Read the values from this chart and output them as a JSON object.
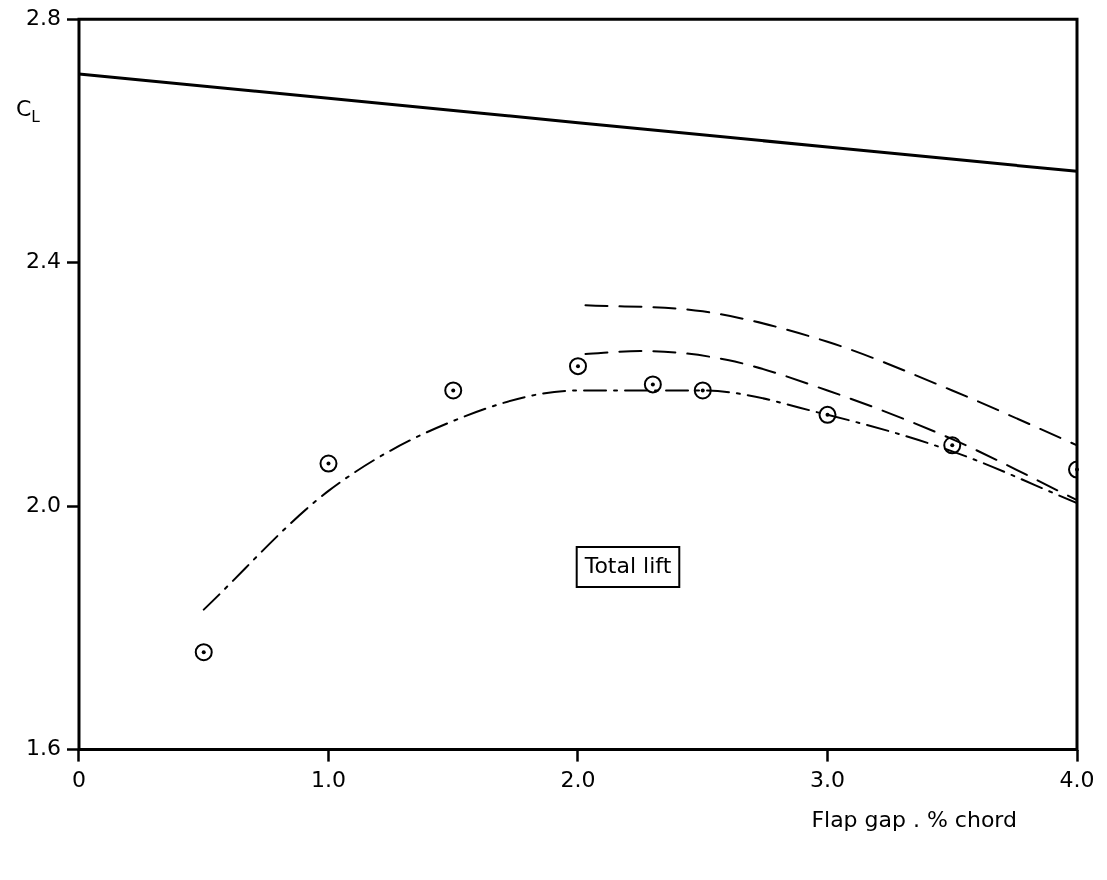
{
  "chart_data": {
    "type": "line",
    "xlabel": "Flap gap . % chord",
    "ylabel": "C$_{L}$",
    "annotations": [
      "Total lift"
    ],
    "xlim": [
      0,
      4.0
    ],
    "ylim": [
      1.6,
      2.8
    ],
    "xticks": [
      0,
      {
        "value": 1,
        "label": "1.0"
      },
      {
        "value": 2,
        "label": "2.0"
      },
      {
        "value": 3,
        "label": "3.0"
      },
      {
        "value": 4,
        "label": "4.0"
      }
    ],
    "yticks": [
      1.6,
      {
        "value": 2,
        "label": "2.0"
      },
      2.4,
      2.8
    ],
    "grid": false,
    "legend": false,
    "series": [
      {
        "type": "line",
        "color": "#000000",
        "line_style": "solid",
        "marker": "none",
        "x": [
          0,
          1.0,
          2.0,
          3.0,
          4.0
        ],
        "values": [
          2.71,
          2.67,
          2.63,
          2.59,
          2.55
        ]
      },
      {
        "type": "line",
        "color": "#000000",
        "line_style": "dashed",
        "marker": "none",
        "x": [
          2.03,
          2.5,
          3.0,
          3.5,
          4.0
        ],
        "values": [
          2.33,
          2.32,
          2.27,
          2.19,
          2.1
        ]
      },
      {
        "type": "line",
        "color": "#000000",
        "line_style": "dashed",
        "marker": "none",
        "x": [
          2.03,
          2.25,
          2.6,
          3.0,
          3.5,
          4.0
        ],
        "values": [
          2.25,
          2.255,
          2.24,
          2.19,
          2.11,
          2.01
        ]
      },
      {
        "type": "line",
        "color": "#000000",
        "line_style": "dashdot",
        "marker": "none",
        "x": [
          0.5,
          1.0,
          1.5,
          2.0,
          2.5,
          3.0,
          3.5,
          4.0
        ],
        "values": [
          1.83,
          2.025,
          2.14,
          2.19,
          2.19,
          2.15,
          2.09,
          2.005
        ]
      },
      {
        "type": "scatter",
        "color": "#000000",
        "marker": "circle",
        "x": [
          0.5,
          1.0,
          1.5,
          2.0,
          2.3,
          2.5,
          3.0,
          3.5,
          4.0
        ],
        "values": [
          1.76,
          2.07,
          2.19,
          2.23,
          2.2,
          2.19,
          2.15,
          2.1,
          2.06
        ]
      }
    ]
  }
}
